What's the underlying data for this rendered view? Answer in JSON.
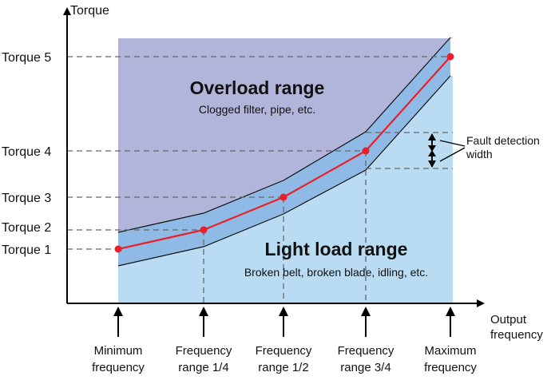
{
  "chart_data": {
    "type": "line",
    "y_axis_title": "Torque",
    "x_axis_title_lines": [
      "Output",
      "frequency"
    ],
    "y_levels": [
      {
        "label": "Torque 1",
        "value": 1
      },
      {
        "label": "Torque 2",
        "value": 2
      },
      {
        "label": "Torque 3",
        "value": 3
      },
      {
        "label": "Torque 4",
        "value": 4
      },
      {
        "label": "Torque 5",
        "value": 5
      }
    ],
    "x_points": [
      {
        "lines": [
          "Minimum",
          "frequency"
        ]
      },
      {
        "lines": [
          "Frequency",
          "range 1/4"
        ]
      },
      {
        "lines": [
          "Frequency",
          "range 1/2"
        ]
      },
      {
        "lines": [
          "Frequency",
          "range 3/4"
        ]
      },
      {
        "lines": [
          "Maximum",
          "frequency"
        ]
      }
    ],
    "series": [
      {
        "values": [
          1,
          2,
          3,
          4,
          5
        ]
      }
    ],
    "regions": {
      "overload": {
        "title": "Overload range",
        "subtitle": "Clogged filter, pipe, etc."
      },
      "light_load": {
        "title": "Light load range",
        "subtitle": "Broken belt, broken blade, idling, etc."
      }
    },
    "band_annotation_lines": [
      "Fault detection",
      "width"
    ],
    "colors": {
      "overload": "#b2b5da",
      "light_load": "#b9dcf2",
      "band": "#8fbae6",
      "line": "#e8202a",
      "guide": "#666666",
      "axis": "#000000"
    }
  }
}
